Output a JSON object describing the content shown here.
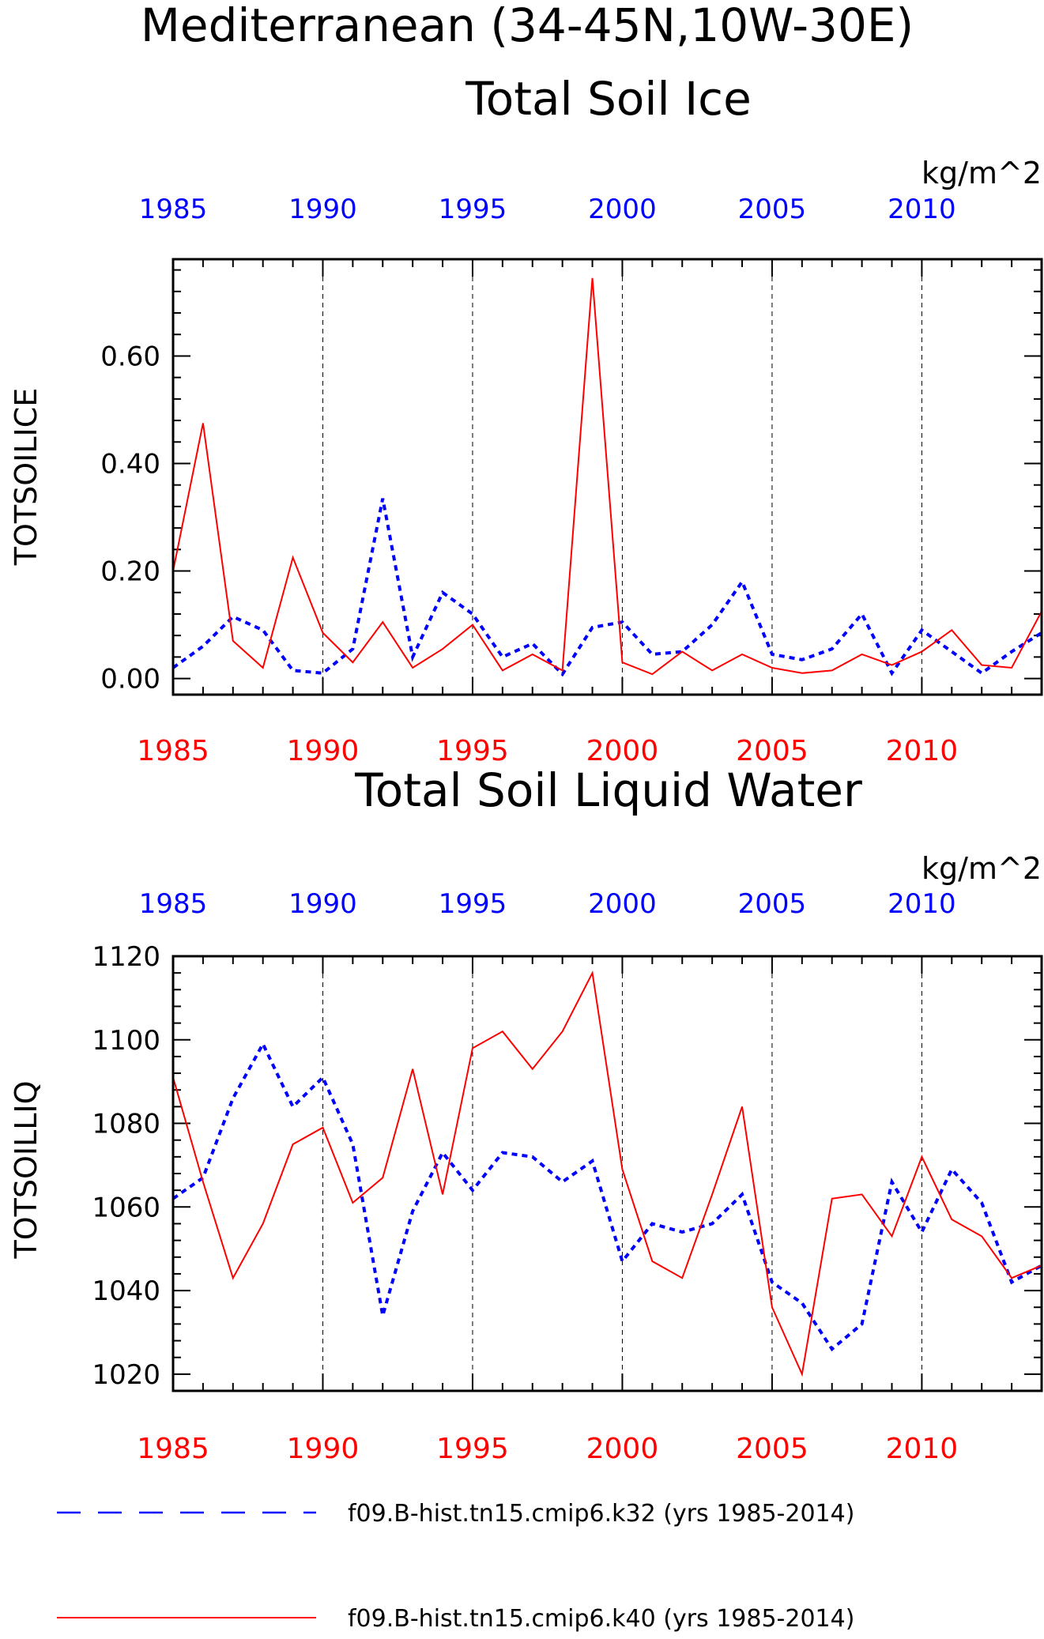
{
  "page": {
    "title": "Mediterranean (34-45N,10W-30E)"
  },
  "chart_data": [
    {
      "type": "line",
      "title": "Total Soil Ice",
      "ylabel": "TOTSOILICE",
      "units": "kg/m^2",
      "ylim": [
        -0.03,
        0.78
      ],
      "yticks": [
        0.0,
        0.2,
        0.4,
        0.6
      ],
      "ytick_labels": [
        "0.00",
        "0.20",
        "0.40",
        "0.60"
      ],
      "xlim": [
        1985,
        2014
      ],
      "xticks": [
        "1985",
        "1990",
        "1995",
        "2000",
        "2005",
        "2010"
      ],
      "grid": "vertical dashed lines at 1990, 1995, 2000, 2005, 2010",
      "x": [
        1985,
        1986,
        1987,
        1988,
        1989,
        1990,
        1991,
        1992,
        1993,
        1994,
        1995,
        1996,
        1997,
        1998,
        1999,
        2000,
        2001,
        2002,
        2003,
        2004,
        2005,
        2006,
        2007,
        2008,
        2009,
        2010,
        2011,
        2012,
        2013,
        2014
      ],
      "series": [
        {
          "name": "f09.B-hist.tn15.cmip6.k32 (yrs 1985-2014)",
          "color": "#0000ff",
          "style": "dashed",
          "values": [
            0.02,
            0.06,
            0.115,
            0.09,
            0.015,
            0.01,
            0.055,
            0.335,
            0.04,
            0.16,
            0.12,
            0.04,
            0.065,
            0.008,
            0.095,
            0.105,
            0.045,
            0.05,
            0.1,
            0.18,
            0.045,
            0.035,
            0.055,
            0.12,
            0.01,
            0.09,
            0.05,
            0.01,
            0.05,
            0.085
          ]
        },
        {
          "name": "f09.B-hist.tn15.cmip6.k40 (yrs 1985-2014)",
          "color": "#ff0000",
          "style": "solid",
          "values": [
            0.2,
            0.475,
            0.07,
            0.02,
            0.225,
            0.085,
            0.03,
            0.105,
            0.02,
            0.055,
            0.1,
            0.015,
            0.045,
            0.015,
            0.745,
            0.03,
            0.008,
            0.05,
            0.015,
            0.045,
            0.02,
            0.01,
            0.015,
            0.045,
            0.025,
            0.05,
            0.09,
            0.025,
            0.02,
            0.125
          ]
        }
      ]
    },
    {
      "type": "line",
      "title": "Total Soil Liquid Water",
      "ylabel": "TOTSOILLIQ",
      "units": "kg/m^2",
      "ylim": [
        1016,
        1120
      ],
      "yticks": [
        1020,
        1040,
        1060,
        1080,
        1100,
        1120
      ],
      "ytick_labels": [
        "1020",
        "1040",
        "1060",
        "1080",
        "1100",
        "1120"
      ],
      "xlim": [
        1985,
        2014
      ],
      "xticks": [
        "1985",
        "1990",
        "1995",
        "2000",
        "2005",
        "2010"
      ],
      "grid": "vertical dashed lines at 1990, 1995, 2000, 2005, 2010",
      "x": [
        1985,
        1986,
        1987,
        1988,
        1989,
        1990,
        1991,
        1992,
        1993,
        1994,
        1995,
        1996,
        1997,
        1998,
        1999,
        2000,
        2001,
        2002,
        2003,
        2004,
        2005,
        2006,
        2007,
        2008,
        2009,
        2010,
        2011,
        2012,
        2013,
        2014
      ],
      "series": [
        {
          "name": "f09.B-hist.tn15.cmip6.k32 (yrs 1985-2014)",
          "color": "#0000ff",
          "style": "dashed",
          "values": [
            1062,
            1067,
            1086,
            1099,
            1084,
            1091,
            1075,
            1034,
            1059,
            1073,
            1064,
            1073,
            1072,
            1066,
            1071,
            1047,
            1056,
            1054,
            1056,
            1063,
            1042,
            1037,
            1026,
            1032,
            1066,
            1054,
            1069,
            1061,
            1042,
            1046
          ]
        },
        {
          "name": "f09.B-hist.tn15.cmip6.k40 (yrs 1985-2014)",
          "color": "#ff0000",
          "style": "solid",
          "values": [
            1091,
            1066,
            1043,
            1056,
            1075,
            1079,
            1061,
            1067,
            1093,
            1063,
            1098,
            1102,
            1093,
            1102,
            1116,
            1069,
            1047,
            1043,
            1063,
            1084,
            1036,
            1020,
            1062,
            1063,
            1053,
            1072,
            1057,
            1053,
            1043,
            1046
          ]
        }
      ]
    }
  ],
  "legend": [
    {
      "label": "f09.B-hist.tn15.cmip6.k32 (yrs 1985-2014)",
      "color": "#0000ff",
      "style": "dashed"
    },
    {
      "label": "f09.B-hist.tn15.cmip6.k40 (yrs 1985-2014)",
      "color": "#ff0000",
      "style": "solid"
    }
  ]
}
